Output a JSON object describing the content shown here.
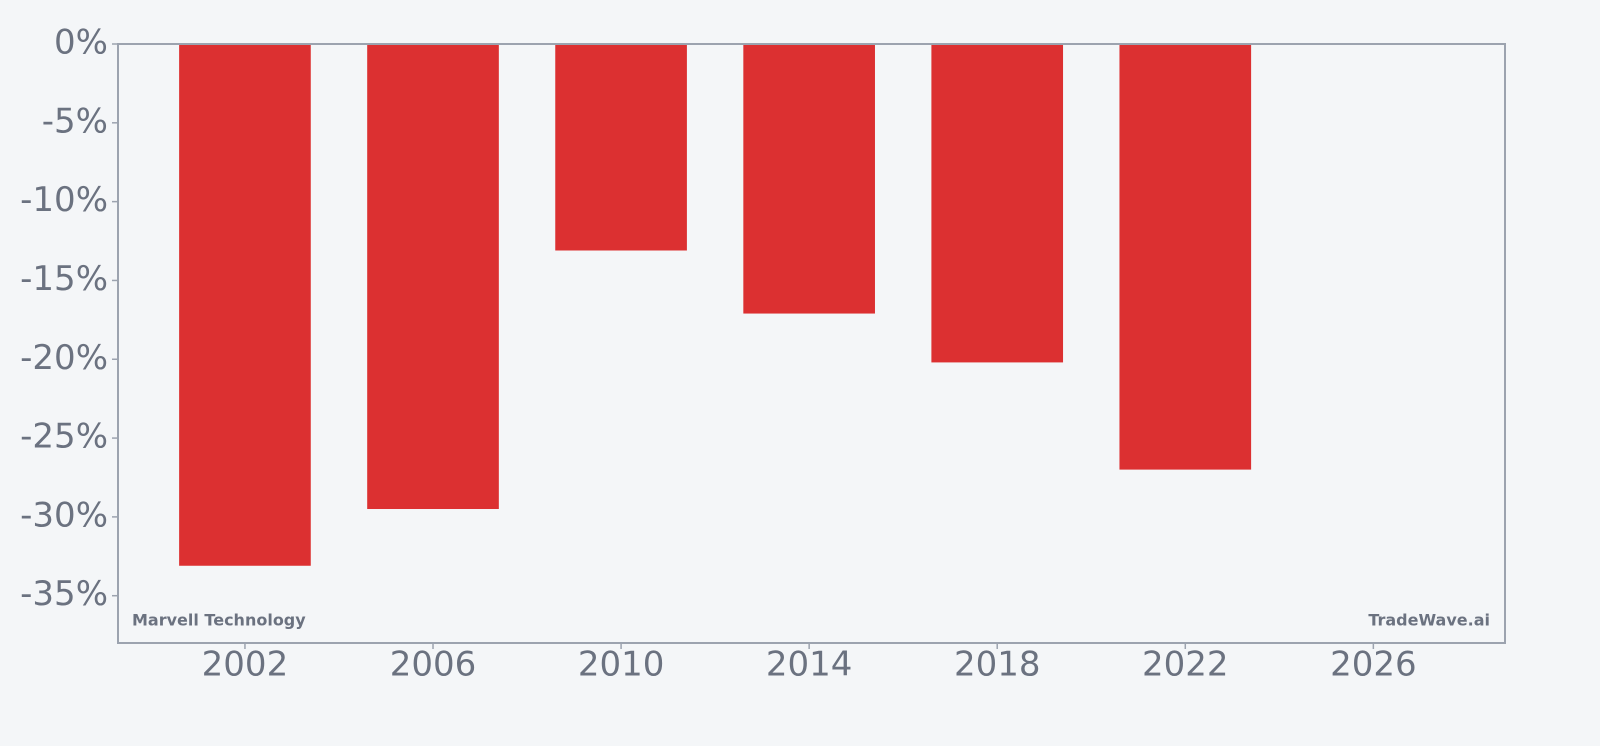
{
  "chart_data": {
    "type": "bar",
    "x": [
      2002,
      2006,
      2010,
      2014,
      2018,
      2022
    ],
    "values": [
      -33.1,
      -29.5,
      -13.1,
      -17.1,
      -20.2,
      -27.0
    ],
    "color": "#dc3031",
    "xlim": [
      1999.3,
      2028.8
    ],
    "xticks": [
      2002,
      2006,
      2010,
      2014,
      2018,
      2022,
      2026
    ],
    "ylim": [
      -38,
      0
    ],
    "yticks": [
      {
        "value": 0,
        "label": "0%"
      },
      {
        "value": -5,
        "label": "-5%"
      },
      {
        "value": -10,
        "label": "-10%"
      },
      {
        "value": -15,
        "label": "-15%"
      },
      {
        "value": -20,
        "label": "-20%"
      },
      {
        "value": -25,
        "label": "-25%"
      },
      {
        "value": -30,
        "label": "-30%"
      },
      {
        "value": -35,
        "label": "-35%"
      }
    ],
    "grid": false,
    "annotations": [
      "Marvell Technology",
      "TradeWave.ai"
    ]
  }
}
